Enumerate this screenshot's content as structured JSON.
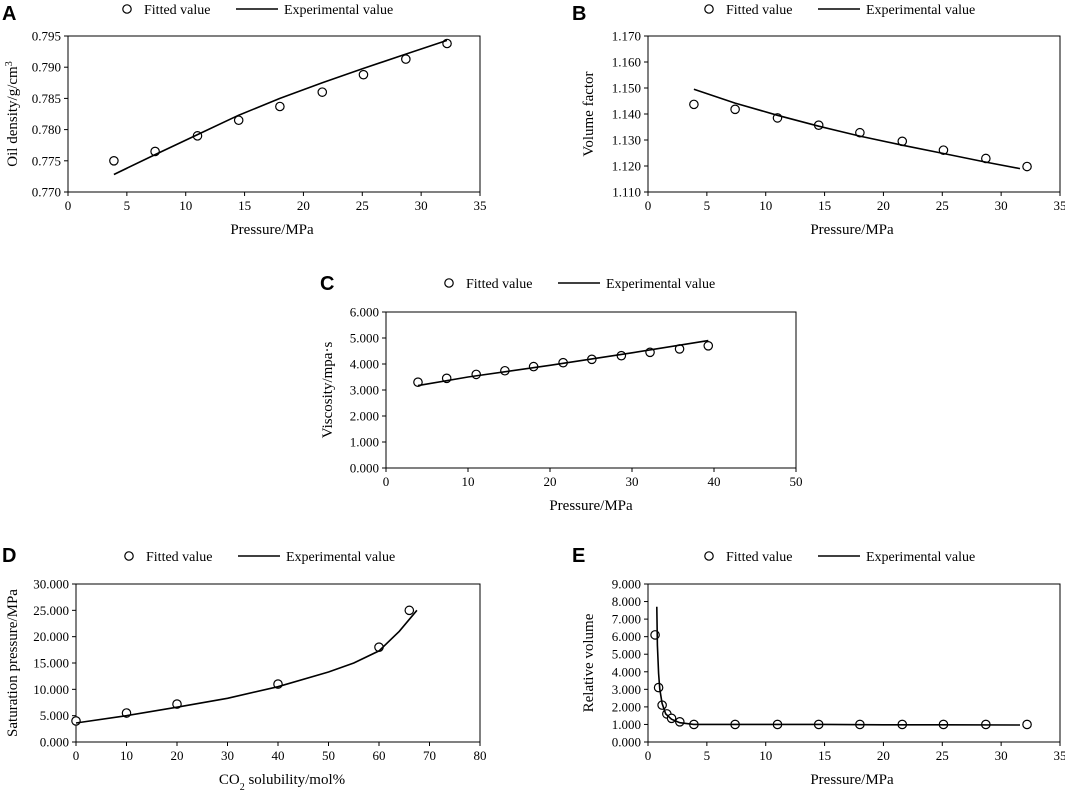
{
  "chart_data": [
    {
      "panel": "A",
      "type": "scatter",
      "legend": [
        "Fitted value",
        "Experimental value"
      ],
      "xlabel": "Pressure/MPa",
      "ylabel_main": "Oil density/g/cm",
      "ylabel_sup": "3",
      "xlim": [
        0,
        35
      ],
      "ylim": [
        0.77,
        0.795
      ],
      "xticks": [
        0,
        5,
        10,
        15,
        20,
        25,
        30,
        35
      ],
      "yticks": [
        0.77,
        0.775,
        0.78,
        0.785,
        0.79,
        0.795
      ],
      "xtick_labels": [
        "0",
        "5",
        "10",
        "15",
        "20",
        "25",
        "30",
        "35"
      ],
      "ytick_labels": [
        "0.770",
        "0.775",
        "0.780",
        "0.785",
        "0.790",
        "0.795"
      ],
      "series": [
        {
          "name": "Fitted value",
          "style": "markers",
          "x": [
            3.9,
            7.4,
            11.0,
            14.5,
            18.0,
            21.6,
            25.1,
            28.7,
            32.2
          ],
          "y": [
            0.775,
            0.7765,
            0.779,
            0.7815,
            0.7837,
            0.786,
            0.7888,
            0.7913,
            0.7938
          ]
        },
        {
          "name": "Experimental value",
          "style": "line",
          "x": [
            3.9,
            7.4,
            11.0,
            14.5,
            18.0,
            21.6,
            25.1,
            28.7,
            32.2
          ],
          "y": [
            0.7728,
            0.776,
            0.7792,
            0.7823,
            0.785,
            0.7875,
            0.7898,
            0.7921,
            0.7943
          ]
        }
      ]
    },
    {
      "panel": "B",
      "type": "scatter",
      "legend": [
        "Fitted value",
        "Experimental value"
      ],
      "xlabel": "Pressure/MPa",
      "ylabel_main": "Volume factor",
      "ylabel_sup": "",
      "xlim": [
        0,
        35
      ],
      "ylim": [
        1.11,
        1.17
      ],
      "xticks": [
        0,
        5,
        10,
        15,
        20,
        25,
        30,
        35
      ],
      "yticks": [
        1.11,
        1.12,
        1.13,
        1.14,
        1.15,
        1.16,
        1.17
      ],
      "xtick_labels": [
        "0",
        "5",
        "10",
        "15",
        "20",
        "25",
        "30",
        "35"
      ],
      "ytick_labels": [
        "1.110",
        "1.120",
        "1.130",
        "1.140",
        "1.150",
        "1.160",
        "1.170"
      ],
      "series": [
        {
          "name": "Fitted value",
          "style": "markers",
          "x": [
            3.9,
            7.4,
            11.0,
            14.5,
            18.0,
            21.6,
            25.1,
            28.7,
            32.2
          ],
          "y": [
            1.1437,
            1.1418,
            1.1385,
            1.1357,
            1.1328,
            1.1295,
            1.1261,
            1.1229,
            1.1198
          ]
        },
        {
          "name": "Experimental value",
          "style": "line",
          "x": [
            3.9,
            7.4,
            11.0,
            14.5,
            18.0,
            21.6,
            25.1,
            28.7,
            31.6
          ],
          "y": [
            1.1495,
            1.1442,
            1.1395,
            1.1353,
            1.1315,
            1.128,
            1.1248,
            1.1215,
            1.119
          ]
        }
      ]
    },
    {
      "panel": "C",
      "type": "scatter",
      "legend": [
        "Fitted value",
        "Experimental value"
      ],
      "xlabel": "Pressure/MPa",
      "ylabel_main": "Viscosity/mpa·s",
      "ylabel_sup": "",
      "xlim": [
        0,
        50
      ],
      "ylim": [
        0,
        6
      ],
      "xticks": [
        0,
        10,
        20,
        30,
        40,
        50
      ],
      "yticks": [
        0,
        1,
        2,
        3,
        4,
        5,
        6
      ],
      "xtick_labels": [
        "0",
        "10",
        "20",
        "30",
        "40",
        "50"
      ],
      "ytick_labels": [
        "0.000",
        "1.000",
        "2.000",
        "3.000",
        "4.000",
        "5.000",
        "6.000"
      ],
      "series": [
        {
          "name": "Fitted value",
          "style": "markers",
          "x": [
            3.9,
            7.4,
            11.0,
            14.5,
            18.0,
            21.6,
            25.1,
            28.7,
            32.2,
            35.8,
            39.3
          ],
          "y": [
            3.3,
            3.45,
            3.6,
            3.74,
            3.9,
            4.05,
            4.18,
            4.32,
            4.45,
            4.58,
            4.7
          ]
        },
        {
          "name": "Experimental value",
          "style": "line",
          "x": [
            3.9,
            10,
            20,
            30,
            39.3
          ],
          "y": [
            3.17,
            3.5,
            3.95,
            4.43,
            4.9
          ]
        }
      ]
    },
    {
      "panel": "D",
      "type": "scatter",
      "legend": [
        "Fitted value",
        "Experimental value"
      ],
      "xlabel_main": "CO",
      "xlabel_sub": "2",
      "xlabel_rest": " solubility/mol%",
      "ylabel_main": "Saturation pressure/MPa",
      "ylabel_sup": "",
      "xlim": [
        0,
        80
      ],
      "ylim": [
        0,
        30
      ],
      "xticks": [
        0,
        10,
        20,
        30,
        40,
        50,
        60,
        70,
        80
      ],
      "yticks": [
        0,
        5,
        10,
        15,
        20,
        25,
        30
      ],
      "xtick_labels": [
        "0",
        "10",
        "20",
        "30",
        "40",
        "50",
        "60",
        "70",
        "80"
      ],
      "ytick_labels": [
        "0.000",
        "5.000",
        "10.000",
        "15.000",
        "20.000",
        "25.000",
        "30.000"
      ],
      "series": [
        {
          "name": "Fitted value",
          "style": "markers",
          "x": [
            0,
            10,
            20,
            40,
            60,
            66
          ],
          "y": [
            4.0,
            5.5,
            7.2,
            11.0,
            18.0,
            25.0
          ]
        },
        {
          "name": "Experimental value",
          "style": "line",
          "x": [
            0,
            10,
            20,
            30,
            40,
            50,
            55,
            60,
            64,
            67.5
          ],
          "y": [
            3.6,
            5.0,
            6.6,
            8.3,
            10.5,
            13.3,
            15.0,
            17.3,
            21.0,
            25.0
          ]
        }
      ]
    },
    {
      "panel": "E",
      "type": "scatter",
      "legend": [
        "Fitted value",
        "Experimental value"
      ],
      "xlabel": "Pressure/MPa",
      "ylabel_main": "Relative volume",
      "ylabel_sup": "",
      "xlim": [
        0,
        35
      ],
      "ylim": [
        0,
        9
      ],
      "xticks": [
        0,
        5,
        10,
        15,
        20,
        25,
        30,
        35
      ],
      "yticks": [
        0,
        1,
        2,
        3,
        4,
        5,
        6,
        7,
        8,
        9
      ],
      "xtick_labels": [
        "0",
        "5",
        "10",
        "15",
        "20",
        "25",
        "30",
        "35"
      ],
      "ytick_labels": [
        "0.000",
        "1.000",
        "2.000",
        "3.000",
        "4.000",
        "5.000",
        "6.000",
        "7.000",
        "8.000",
        "9.000"
      ],
      "series": [
        {
          "name": "Fitted value",
          "style": "markers",
          "x": [
            0.6,
            0.9,
            1.2,
            1.6,
            2.0,
            2.7,
            3.9,
            7.4,
            11.0,
            14.5,
            18.0,
            21.6,
            25.1,
            28.7,
            32.2
          ],
          "y": [
            6.1,
            3.1,
            2.1,
            1.6,
            1.35,
            1.15,
            1.0,
            1.0,
            1.0,
            1.0,
            1.0,
            1.0,
            1.0,
            1.0,
            1.0
          ]
        },
        {
          "name": "Experimental value",
          "style": "line",
          "x": [
            0.75,
            0.8,
            0.9,
            1.0,
            1.2,
            1.5,
            2.0,
            2.7,
            3.9,
            7.4,
            11.0,
            15.0,
            20.0,
            25.0,
            31.6
          ],
          "y": [
            7.7,
            5.5,
            3.9,
            3.0,
            2.2,
            1.6,
            1.3,
            1.1,
            1.0,
            1.0,
            1.0,
            1.0,
            0.98,
            0.98,
            0.97
          ]
        }
      ]
    }
  ]
}
